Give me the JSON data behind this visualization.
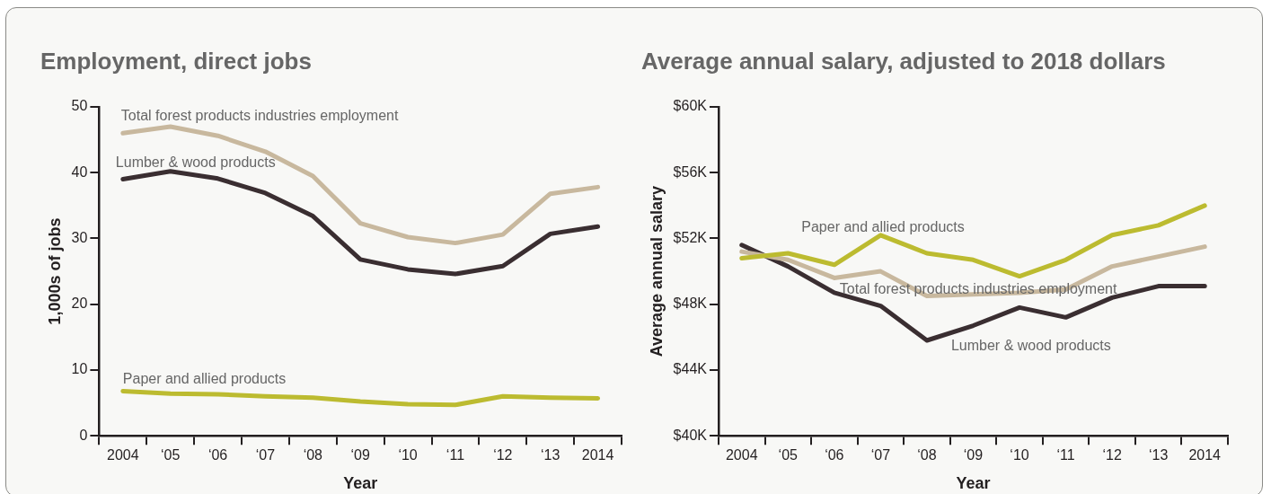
{
  "chart_data": [
    {
      "type": "line",
      "title": "Employment, direct jobs",
      "xlabel": "Year",
      "ylabel": "1,000s of jobs",
      "categories": [
        "2004",
        "‘05",
        "‘06",
        "‘07",
        "‘08",
        "‘09",
        "‘10",
        "‘11",
        "‘12",
        "‘13",
        "2014"
      ],
      "ylim": [
        0,
        50
      ],
      "yticks": [
        0,
        10,
        20,
        30,
        40,
        50
      ],
      "grid": false,
      "legend": false,
      "marker": "none",
      "series": [
        {
          "name": "Total forest products industries employment",
          "color": "#c8b89e",
          "values": [
            46.0,
            47.0,
            45.6,
            43.2,
            39.5,
            32.3,
            30.2,
            29.3,
            30.6,
            36.8,
            37.8
          ]
        },
        {
          "name": "Lumber & wood products",
          "color": "#3a2e31",
          "values": [
            39.0,
            40.2,
            39.1,
            36.9,
            33.4,
            26.8,
            25.3,
            24.6,
            25.8,
            30.7,
            31.8
          ]
        },
        {
          "name": "Paper and allied products",
          "color": "#bcbb30",
          "values": [
            6.8,
            6.4,
            6.3,
            6.0,
            5.8,
            5.2,
            4.8,
            4.7,
            6.0,
            5.8,
            5.7
          ]
        }
      ]
    },
    {
      "type": "line",
      "title": "Average annual salary, adjusted to 2018 dollars",
      "xlabel": "Year",
      "ylabel": "Average annual salary",
      "categories": [
        "2004",
        "‘05",
        "‘06",
        "‘07",
        "‘08",
        "‘09",
        "‘10",
        "‘11",
        "‘12",
        "‘13",
        "2014"
      ],
      "ylim": [
        40,
        60
      ],
      "yticks": [
        {
          "value": 40,
          "label": "$40K"
        },
        {
          "value": 44,
          "label": "$44K"
        },
        {
          "value": 48,
          "label": "$48K"
        },
        {
          "value": 52,
          "label": "$52K"
        },
        {
          "value": 56,
          "label": "$56K"
        },
        {
          "value": 60,
          "label": "$60K"
        }
      ],
      "grid": false,
      "legend": false,
      "marker": "none",
      "series": [
        {
          "name": "Paper and allied products",
          "color": "#bcbb30",
          "values": [
            50.8,
            51.1,
            50.4,
            52.2,
            51.1,
            50.7,
            49.7,
            50.7,
            52.2,
            52.8,
            54.0
          ]
        },
        {
          "name": "Total forest products industries employment",
          "color": "#c8b89e",
          "values": [
            51.2,
            50.7,
            49.6,
            50.0,
            48.5,
            48.6,
            48.7,
            48.9,
            50.3,
            50.9,
            51.5
          ]
        },
        {
          "name": "Lumber & wood products",
          "color": "#3a2e31",
          "values": [
            51.6,
            50.3,
            48.7,
            47.9,
            45.8,
            46.7,
            47.8,
            47.2,
            48.4,
            49.1,
            49.1
          ]
        }
      ]
    }
  ]
}
